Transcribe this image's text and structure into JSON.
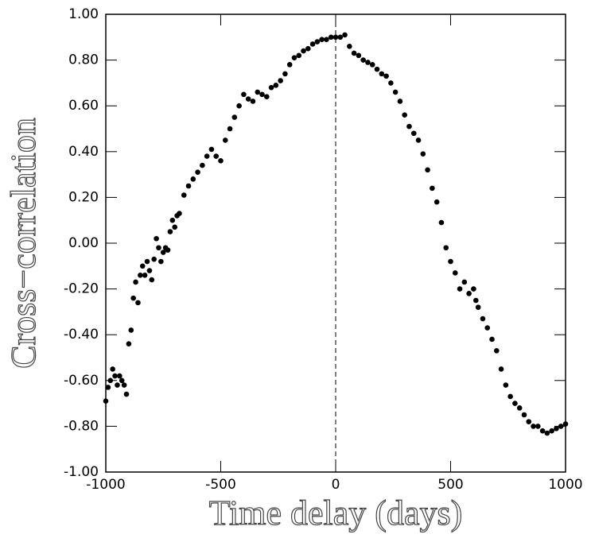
{
  "chart_data": {
    "type": "scatter",
    "xlabel": "Time delay (days)",
    "ylabel": "Cross−correlation",
    "color": "#000000",
    "vlines": [
      0
    ],
    "xlim": [
      -1000,
      1000
    ],
    "xticks": [
      -1000,
      -500,
      0,
      500,
      1000
    ],
    "ylim": [
      -1,
      1
    ],
    "yticks": [
      {
        "value": -1,
        "label": "-1.00"
      },
      {
        "value": -0.8,
        "label": "-0.80"
      },
      {
        "value": -0.6,
        "label": "-0.60"
      },
      {
        "value": -0.4,
        "label": "-0.40"
      },
      {
        "value": -0.2,
        "label": "-0.20"
      },
      {
        "value": 0,
        "label": "0.00"
      },
      {
        "value": 0.2,
        "label": "0.20"
      },
      {
        "value": 0.4,
        "label": "0.40"
      },
      {
        "value": 0.6,
        "label": "0.60"
      },
      {
        "value": 0.8,
        "label": "0.80"
      },
      {
        "value": 1,
        "label": "1.00"
      }
    ],
    "x": [
      -1000,
      -990,
      -980,
      -970,
      -960,
      -950,
      -940,
      -930,
      -920,
      -910,
      -900,
      -890,
      -880,
      -870,
      -860,
      -850,
      -840,
      -830,
      -820,
      -810,
      -800,
      -790,
      -780,
      -770,
      -760,
      -750,
      -740,
      -730,
      -720,
      -710,
      -700,
      -690,
      -680,
      -660,
      -640,
      -620,
      -600,
      -580,
      -560,
      -540,
      -520,
      -500,
      -480,
      -460,
      -440,
      -420,
      -400,
      -380,
      -360,
      -340,
      -320,
      -300,
      -280,
      -260,
      -240,
      -220,
      -200,
      -180,
      -160,
      -140,
      -120,
      -100,
      -80,
      -60,
      -40,
      -20,
      0,
      20,
      40,
      60,
      80,
      100,
      120,
      140,
      160,
      180,
      200,
      220,
      240,
      260,
      280,
      300,
      320,
      340,
      360,
      380,
      400,
      420,
      440,
      460,
      480,
      500,
      520,
      540,
      560,
      580,
      600,
      610,
      620,
      640,
      660,
      680,
      700,
      720,
      740,
      760,
      780,
      800,
      820,
      840,
      860,
      880,
      900,
      920,
      940,
      960,
      980,
      1000
    ],
    "values": [
      -0.69,
      -0.63,
      -0.6,
      -0.55,
      -0.58,
      -0.62,
      -0.58,
      -0.6,
      -0.62,
      -0.66,
      -0.44,
      -0.38,
      -0.24,
      -0.17,
      -0.26,
      -0.14,
      -0.1,
      -0.14,
      -0.08,
      -0.12,
      -0.16,
      -0.07,
      0.02,
      -0.02,
      -0.08,
      -0.04,
      -0.02,
      -0.03,
      0.05,
      0.1,
      0.07,
      0.12,
      0.13,
      0.21,
      0.25,
      0.28,
      0.31,
      0.34,
      0.38,
      0.41,
      0.38,
      0.36,
      0.45,
      0.5,
      0.55,
      0.6,
      0.65,
      0.63,
      0.62,
      0.66,
      0.65,
      0.64,
      0.68,
      0.69,
      0.71,
      0.74,
      0.78,
      0.81,
      0.82,
      0.84,
      0.85,
      0.87,
      0.88,
      0.89,
      0.89,
      0.9,
      0.9,
      0.9,
      0.91,
      0.86,
      0.83,
      0.82,
      0.8,
      0.79,
      0.78,
      0.76,
      0.74,
      0.73,
      0.7,
      0.66,
      0.62,
      0.56,
      0.51,
      0.48,
      0.45,
      0.39,
      0.32,
      0.24,
      0.18,
      0.09,
      -0.02,
      -0.08,
      -0.13,
      -0.2,
      -0.17,
      -0.22,
      -0.2,
      -0.25,
      -0.28,
      -0.33,
      -0.37,
      -0.42,
      -0.47,
      -0.55,
      -0.62,
      -0.67,
      -0.7,
      -0.72,
      -0.75,
      -0.78,
      -0.8,
      -0.8,
      -0.82,
      -0.83,
      -0.82,
      -0.81,
      -0.8,
      -0.79
    ]
  }
}
